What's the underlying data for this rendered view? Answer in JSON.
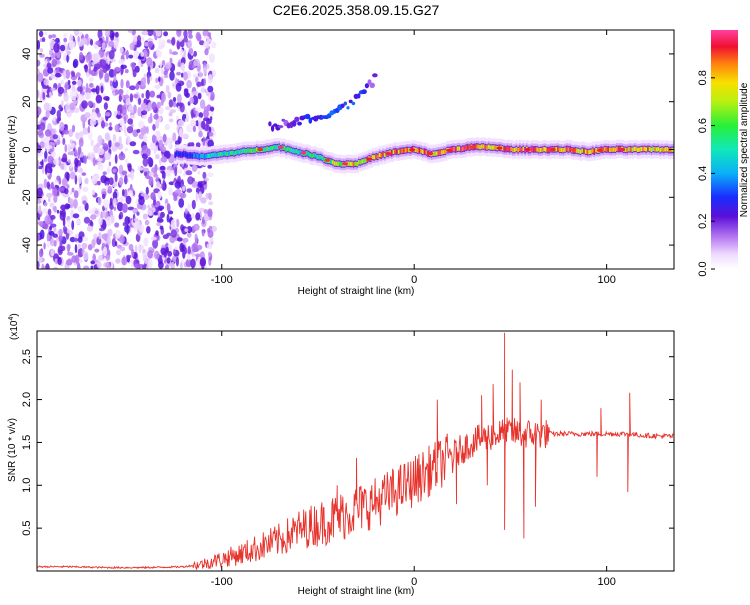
{
  "title": "C2E6.2025.358.09.15.G27",
  "chart_data": [
    {
      "type": "heatmap",
      "title": "C2E6.2025.358.09.15.G27",
      "xlabel": "Height of straight line (km)",
      "ylabel": "Frequency (Hz)",
      "xlim": [
        -196,
        135
      ],
      "ylim": [
        -50,
        50
      ],
      "xticks": [
        -100,
        0,
        100
      ],
      "xtick_labels": [
        "-100",
        "0",
        "100"
      ],
      "yticks": [
        -40,
        -20,
        0,
        20,
        40
      ],
      "ytick_labels": [
        "-40",
        "-20",
        "0",
        "20",
        "40"
      ],
      "colorbar": {
        "label": "Normalized spectral amplitude",
        "range": [
          0.0,
          1.0
        ],
        "ticks": [
          0.0,
          0.2,
          0.4,
          0.6,
          0.8
        ],
        "tick_labels": [
          "0.0",
          "0.2",
          "0.4",
          "0.6",
          "0.8"
        ]
      },
      "ridge": {
        "name": "dominant frequency trace",
        "x": [
          -120,
          -110,
          -100,
          -90,
          -80,
          -70,
          -60,
          -50,
          -40,
          -30,
          -20,
          -10,
          0,
          10,
          20,
          30,
          40,
          50,
          60,
          70,
          80,
          90,
          100,
          110,
          120,
          135
        ],
        "y": [
          -2,
          -3,
          -2,
          -1,
          0,
          1,
          -1,
          -3,
          -6,
          -6,
          -3,
          -1,
          0,
          -2,
          0,
          1,
          1,
          0,
          0,
          0,
          0,
          -1,
          0,
          0,
          0,
          0
        ],
        "amplitude": [
          0.3,
          0.45,
          0.55,
          0.6,
          0.65,
          0.6,
          0.55,
          0.6,
          0.75,
          0.85,
          0.85,
          0.9,
          0.95,
          0.9,
          0.95,
          0.95,
          0.9,
          0.95,
          0.95,
          0.95,
          0.95,
          0.9,
          0.9,
          0.9,
          0.9,
          0.85
        ]
      },
      "secondary_branch": {
        "x": [
          -75,
          -60,
          -45,
          -35,
          -30,
          -25,
          -20
        ],
        "y": [
          10,
          12,
          15,
          18,
          21,
          25,
          30
        ],
        "amplitude": [
          0.2,
          0.25,
          0.3,
          0.35,
          0.3,
          0.25,
          0.2
        ]
      },
      "noise_region": {
        "x_range": [
          -196,
          -112
        ],
        "y_range": [
          -50,
          50
        ],
        "amplitude_range": [
          0.05,
          0.2
        ]
      }
    },
    {
      "type": "line",
      "xlabel": "Height of straight line (km)",
      "ylabel": "SNR (10 * v/v)",
      "y_scale_label": "(x10",
      "y_scale_exp": "4",
      "y_scale_close": ")",
      "xlim": [
        -196,
        135
      ],
      "ylim": [
        0.0,
        2.8
      ],
      "xticks": [
        -100,
        0,
        100
      ],
      "xtick_labels": [
        "-100",
        "0",
        "100"
      ],
      "yticks": [
        0.5,
        1.0,
        1.5,
        2.0,
        2.5
      ],
      "ytick_labels": [
        "0.5",
        "1.0",
        "1.5",
        "2.0",
        "2.5"
      ],
      "series": [
        {
          "name": "SNR",
          "color": "#e8322c",
          "x": [
            -196,
            -180,
            -160,
            -140,
            -120,
            -110,
            -100,
            -90,
            -80,
            -70,
            -60,
            -50,
            -40,
            -30,
            -20,
            -10,
            0,
            10,
            20,
            30,
            40,
            45,
            50,
            55,
            60,
            70,
            80,
            90,
            100,
            110,
            120,
            135
          ],
          "values": [
            0.05,
            0.05,
            0.04,
            0.04,
            0.05,
            0.08,
            0.14,
            0.2,
            0.28,
            0.36,
            0.48,
            0.55,
            0.62,
            0.72,
            0.8,
            0.92,
            1.05,
            1.2,
            1.35,
            1.5,
            1.58,
            1.6,
            1.62,
            1.6,
            1.6,
            1.6,
            1.6,
            1.6,
            1.6,
            1.6,
            1.58,
            1.57
          ]
        }
      ],
      "extremes": [
        {
          "x": 47,
          "y": 2.78
        },
        {
          "x": 47,
          "y": 0.48
        },
        {
          "x": 57,
          "y": 0.38
        },
        {
          "x": 51,
          "y": 2.35
        },
        {
          "x": 41,
          "y": 2.18
        },
        {
          "x": 55,
          "y": 2.2
        },
        {
          "x": 63,
          "y": 0.75
        },
        {
          "x": 66,
          "y": 2.0
        },
        {
          "x": 95,
          "y": 1.1
        },
        {
          "x": 97,
          "y": 1.9
        },
        {
          "x": 111,
          "y": 0.92
        },
        {
          "x": 112,
          "y": 2.08
        },
        {
          "x": 22,
          "y": 0.78
        },
        {
          "x": 12,
          "y": 2.0
        },
        {
          "x": 35,
          "y": 2.05
        },
        {
          "x": 38,
          "y": 1.0
        },
        {
          "x": -30,
          "y": 1.32
        },
        {
          "x": -40,
          "y": 1.0
        }
      ]
    }
  ]
}
